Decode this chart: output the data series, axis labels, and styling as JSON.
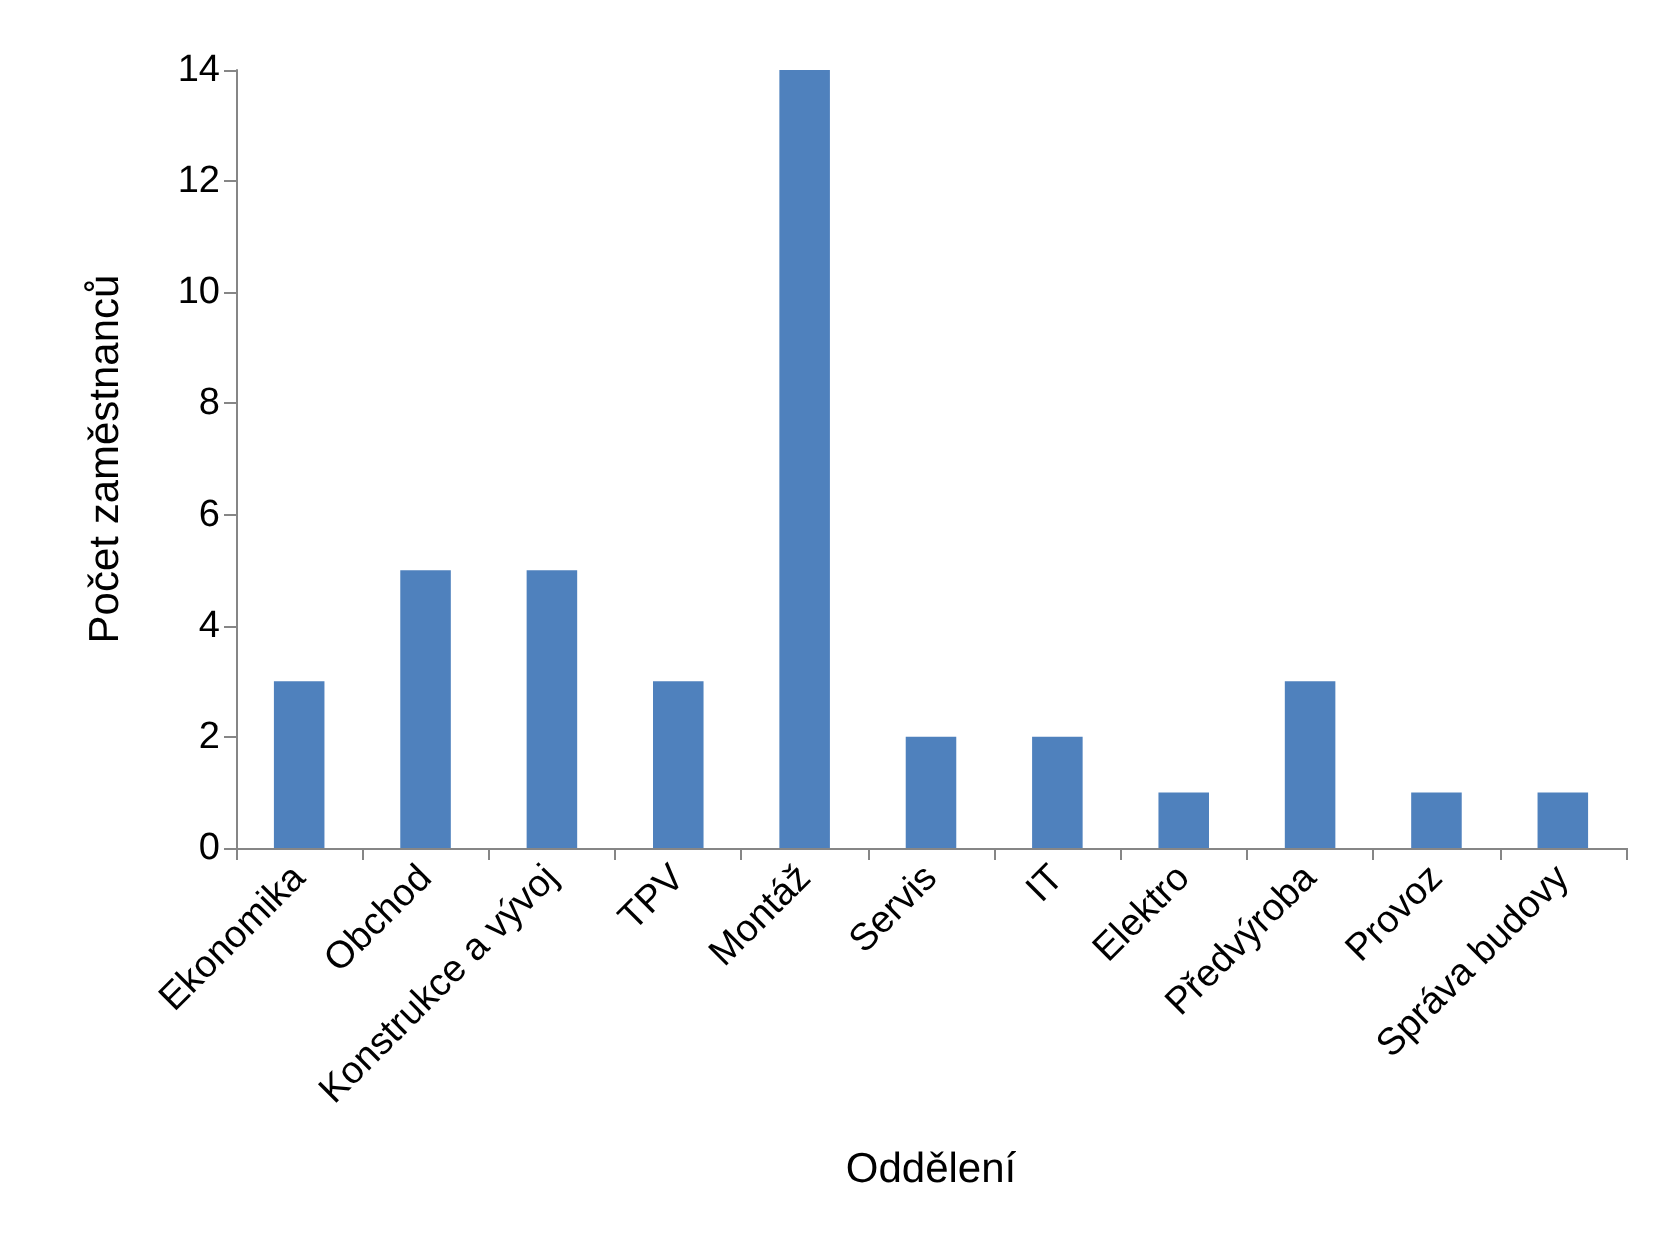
{
  "chart_data": {
    "type": "bar",
    "xlabel": "Oddělení",
    "ylabel": "Počet zaměstnanců",
    "categories": [
      "Ekonomika",
      "Obchod",
      "Konstrukce a vývoj",
      "TPV",
      "Montáž",
      "Servis",
      "IT",
      "Elektro",
      "Předvýroba",
      "Provoz",
      "Správa budovy"
    ],
    "values": [
      3,
      5,
      5,
      3,
      14,
      2,
      2,
      1,
      3,
      1,
      1
    ],
    "color": "#4f81bd",
    "ylim": [
      0,
      14
    ],
    "yticks": [
      0,
      2,
      4,
      6,
      8,
      10,
      12,
      14
    ]
  }
}
